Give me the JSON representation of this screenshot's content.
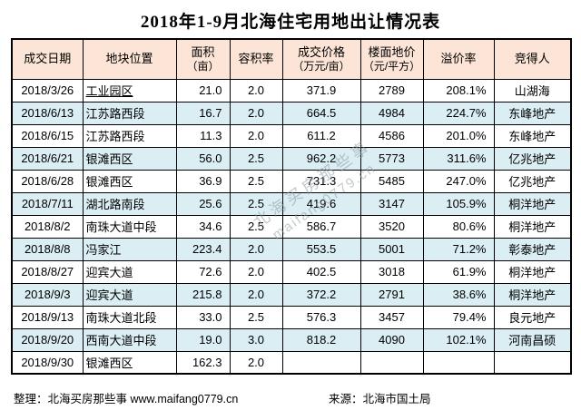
{
  "title": "2018年1-9月北海住宅用地出让情况表",
  "colors": {
    "header_bg": "#fce4d6",
    "alt_row_bg": "#daeef3",
    "border": "#000000"
  },
  "table": {
    "headers": [
      {
        "line1": "成交日期",
        "line2": ""
      },
      {
        "line1": "地块位置",
        "line2": ""
      },
      {
        "line1": "面积",
        "line2": "（亩）"
      },
      {
        "line1": "容积率",
        "line2": ""
      },
      {
        "line1": "成交价格",
        "line2": "（万元/亩）"
      },
      {
        "line1": "楼面地价",
        "line2": "（元/平方）"
      },
      {
        "line1": "溢价率",
        "line2": ""
      },
      {
        "line1": "竞得人",
        "line2": ""
      }
    ],
    "rows": [
      {
        "date": "2018/3/26",
        "location": "工业园区",
        "location_underline": true,
        "area": "21.0",
        "plot_ratio": "2.0",
        "price": "371.9",
        "floor_price": "2789",
        "premium": "208.1%",
        "winner": "山湖海"
      },
      {
        "date": "2018/6/13",
        "location": "江苏路西段",
        "location_underline": false,
        "area": "16.7",
        "plot_ratio": "2.0",
        "price": "664.5",
        "floor_price": "4984",
        "premium": "224.7%",
        "winner": "东峰地产"
      },
      {
        "date": "2018/6/15",
        "location": "江苏路西段",
        "location_underline": false,
        "area": "11.3",
        "plot_ratio": "2.0",
        "price": "611.2",
        "floor_price": "4586",
        "premium": "201.0%",
        "winner": "东峰地产"
      },
      {
        "date": "2018/6/21",
        "location": "银滩西区",
        "location_underline": false,
        "area": "56.0",
        "plot_ratio": "2.5",
        "price": "962.2",
        "floor_price": "5773",
        "premium": "311.6%",
        "winner": "亿兆地产"
      },
      {
        "date": "2018/6/28",
        "location": "银滩西区",
        "location_underline": false,
        "area": "36.9",
        "plot_ratio": "2.5",
        "price": "731.3",
        "floor_price": "5485",
        "premium": "247.0%",
        "winner": "亿兆地产"
      },
      {
        "date": "2018/7/11",
        "location": "湖北路南段",
        "location_underline": false,
        "area": "25.6",
        "plot_ratio": "2.5",
        "price": "419.6",
        "floor_price": "3147",
        "premium": "105.9%",
        "winner": "桐洋地产"
      },
      {
        "date": "2018/8/2",
        "location": "南珠大道中段",
        "location_underline": false,
        "area": "34.6",
        "plot_ratio": "2.5",
        "price": "586.7",
        "floor_price": "3520",
        "premium": "80.6%",
        "winner": "桐洋地产"
      },
      {
        "date": "2018/8/8",
        "location": "冯家江",
        "location_underline": false,
        "area": "223.4",
        "plot_ratio": "2.0",
        "price": "553.5",
        "floor_price": "5001",
        "premium": "71.2%",
        "winner": "彰泰地产"
      },
      {
        "date": "2018/8/27",
        "location": "迎宾大道",
        "location_underline": false,
        "area": "72.6",
        "plot_ratio": "2.0",
        "price": "402.5",
        "floor_price": "3018",
        "premium": "61.9%",
        "winner": "桐洋地产"
      },
      {
        "date": "2018/9/3",
        "location": "迎宾大道",
        "location_underline": false,
        "area": "215.8",
        "plot_ratio": "2.0",
        "price": "372.2",
        "floor_price": "2791",
        "premium": "38.6%",
        "winner": "桐洋地产"
      },
      {
        "date": "2018/9/13",
        "location": "南珠大道北段",
        "location_underline": false,
        "area": "33.0",
        "plot_ratio": "2.5",
        "price": "576.3",
        "floor_price": "3457",
        "premium": "79.4%",
        "winner": "良元地产"
      },
      {
        "date": "2018/9/20",
        "location": "西南大道中段",
        "location_underline": false,
        "area": "19.0",
        "plot_ratio": "3.0",
        "price": "818.2",
        "floor_price": "4090",
        "premium": "102.1%",
        "winner": "河南昌硕"
      },
      {
        "date": "2018/9/30",
        "location": "银滩西区",
        "location_underline": false,
        "area": "162.3",
        "plot_ratio": "2.0",
        "price": "",
        "floor_price": "",
        "premium": "",
        "winner": ""
      }
    ]
  },
  "watermark": {
    "line1": "北海买房那些事",
    "line2": "maifang0779.cn"
  },
  "footer": {
    "left": "整理：北海买房那些事 www.maifang0779.cn",
    "right": "来源：北海市国土局"
  },
  "chart_data": {
    "type": "table",
    "title": "2018年1-9月北海住宅用地出让情况表",
    "columns": [
      "成交日期",
      "地块位置",
      "面积（亩）",
      "容积率",
      "成交价格（万元/亩）",
      "楼面地价（元/平方）",
      "溢价率",
      "竞得人"
    ],
    "rows": [
      [
        "2018/3/26",
        "工业园区",
        21.0,
        2.0,
        371.9,
        2789,
        "208.1%",
        "山湖海"
      ],
      [
        "2018/6/13",
        "江苏路西段",
        16.7,
        2.0,
        664.5,
        4984,
        "224.7%",
        "东峰地产"
      ],
      [
        "2018/6/15",
        "江苏路西段",
        11.3,
        2.0,
        611.2,
        4586,
        "201.0%",
        "东峰地产"
      ],
      [
        "2018/6/21",
        "银滩西区",
        56.0,
        2.5,
        962.2,
        5773,
        "311.6%",
        "亿兆地产"
      ],
      [
        "2018/6/28",
        "银滩西区",
        36.9,
        2.5,
        731.3,
        5485,
        "247.0%",
        "亿兆地产"
      ],
      [
        "2018/7/11",
        "湖北路南段",
        25.6,
        2.5,
        419.6,
        3147,
        "105.9%",
        "桐洋地产"
      ],
      [
        "2018/8/2",
        "南珠大道中段",
        34.6,
        2.5,
        586.7,
        3520,
        "80.6%",
        "桐洋地产"
      ],
      [
        "2018/8/8",
        "冯家江",
        223.4,
        2.0,
        553.5,
        5001,
        "71.2%",
        "彰泰地产"
      ],
      [
        "2018/8/27",
        "迎宾大道",
        72.6,
        2.0,
        402.5,
        3018,
        "61.9%",
        "桐洋地产"
      ],
      [
        "2018/9/3",
        "迎宾大道",
        215.8,
        2.0,
        372.2,
        2791,
        "38.6%",
        "桐洋地产"
      ],
      [
        "2018/9/13",
        "南珠大道北段",
        33.0,
        2.5,
        576.3,
        3457,
        "79.4%",
        "良元地产"
      ],
      [
        "2018/9/20",
        "西南大道中段",
        19.0,
        3.0,
        818.2,
        4090,
        "102.1%",
        "河南昌硕"
      ],
      [
        "2018/9/30",
        "银滩西区",
        162.3,
        2.0,
        null,
        null,
        null,
        null
      ]
    ]
  }
}
